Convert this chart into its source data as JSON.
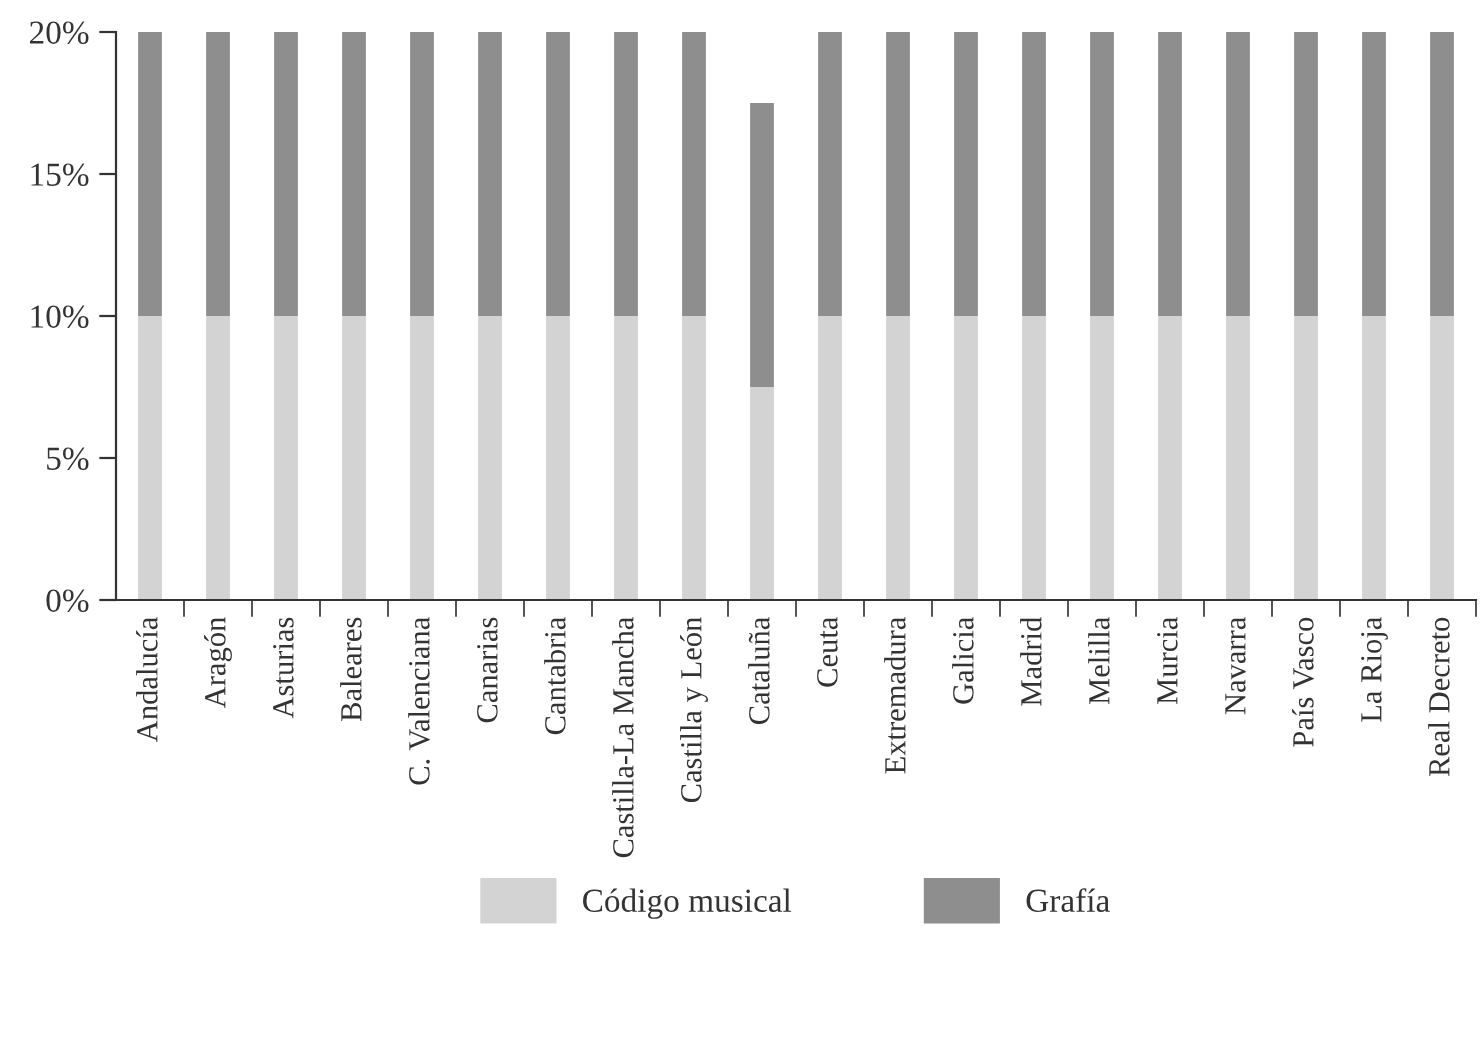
{
  "chart_data": {
    "type": "bar",
    "stacked": true,
    "categories": [
      "Andalucía",
      "Aragón",
      "Asturias",
      "Baleares",
      "C. Valenciana",
      "Canarias",
      "Cantabria",
      "Castilla-La Mancha",
      "Castilla y León",
      "Cataluña",
      "Ceuta",
      "Extremadura",
      "Galicia",
      "Madrid",
      "Melilla",
      "Murcia",
      "Navarra",
      "País Vasco",
      "La Rioja",
      "Real Decreto"
    ],
    "series": [
      {
        "name": "Código musical",
        "color": "#d3d3d3",
        "values": [
          10,
          10,
          10,
          10,
          10,
          10,
          10,
          10,
          10,
          7.5,
          10,
          10,
          10,
          10,
          10,
          10,
          10,
          10,
          10,
          10
        ]
      },
      {
        "name": "Grafía",
        "color": "#8e8e8e",
        "values": [
          10,
          10,
          10,
          10,
          10,
          10,
          10,
          10,
          10,
          10,
          10,
          10,
          10,
          10,
          10,
          10,
          10,
          10,
          10,
          10
        ]
      }
    ],
    "ylim": [
      0,
      20
    ],
    "yticks": [
      {
        "value": 0,
        "label": "0%"
      },
      {
        "value": 5,
        "label": "5%"
      },
      {
        "value": 10,
        "label": "10%"
      },
      {
        "value": 15,
        "label": "15%"
      },
      {
        "value": 20,
        "label": "20%"
      }
    ],
    "grid": false,
    "legend": "bottom"
  }
}
